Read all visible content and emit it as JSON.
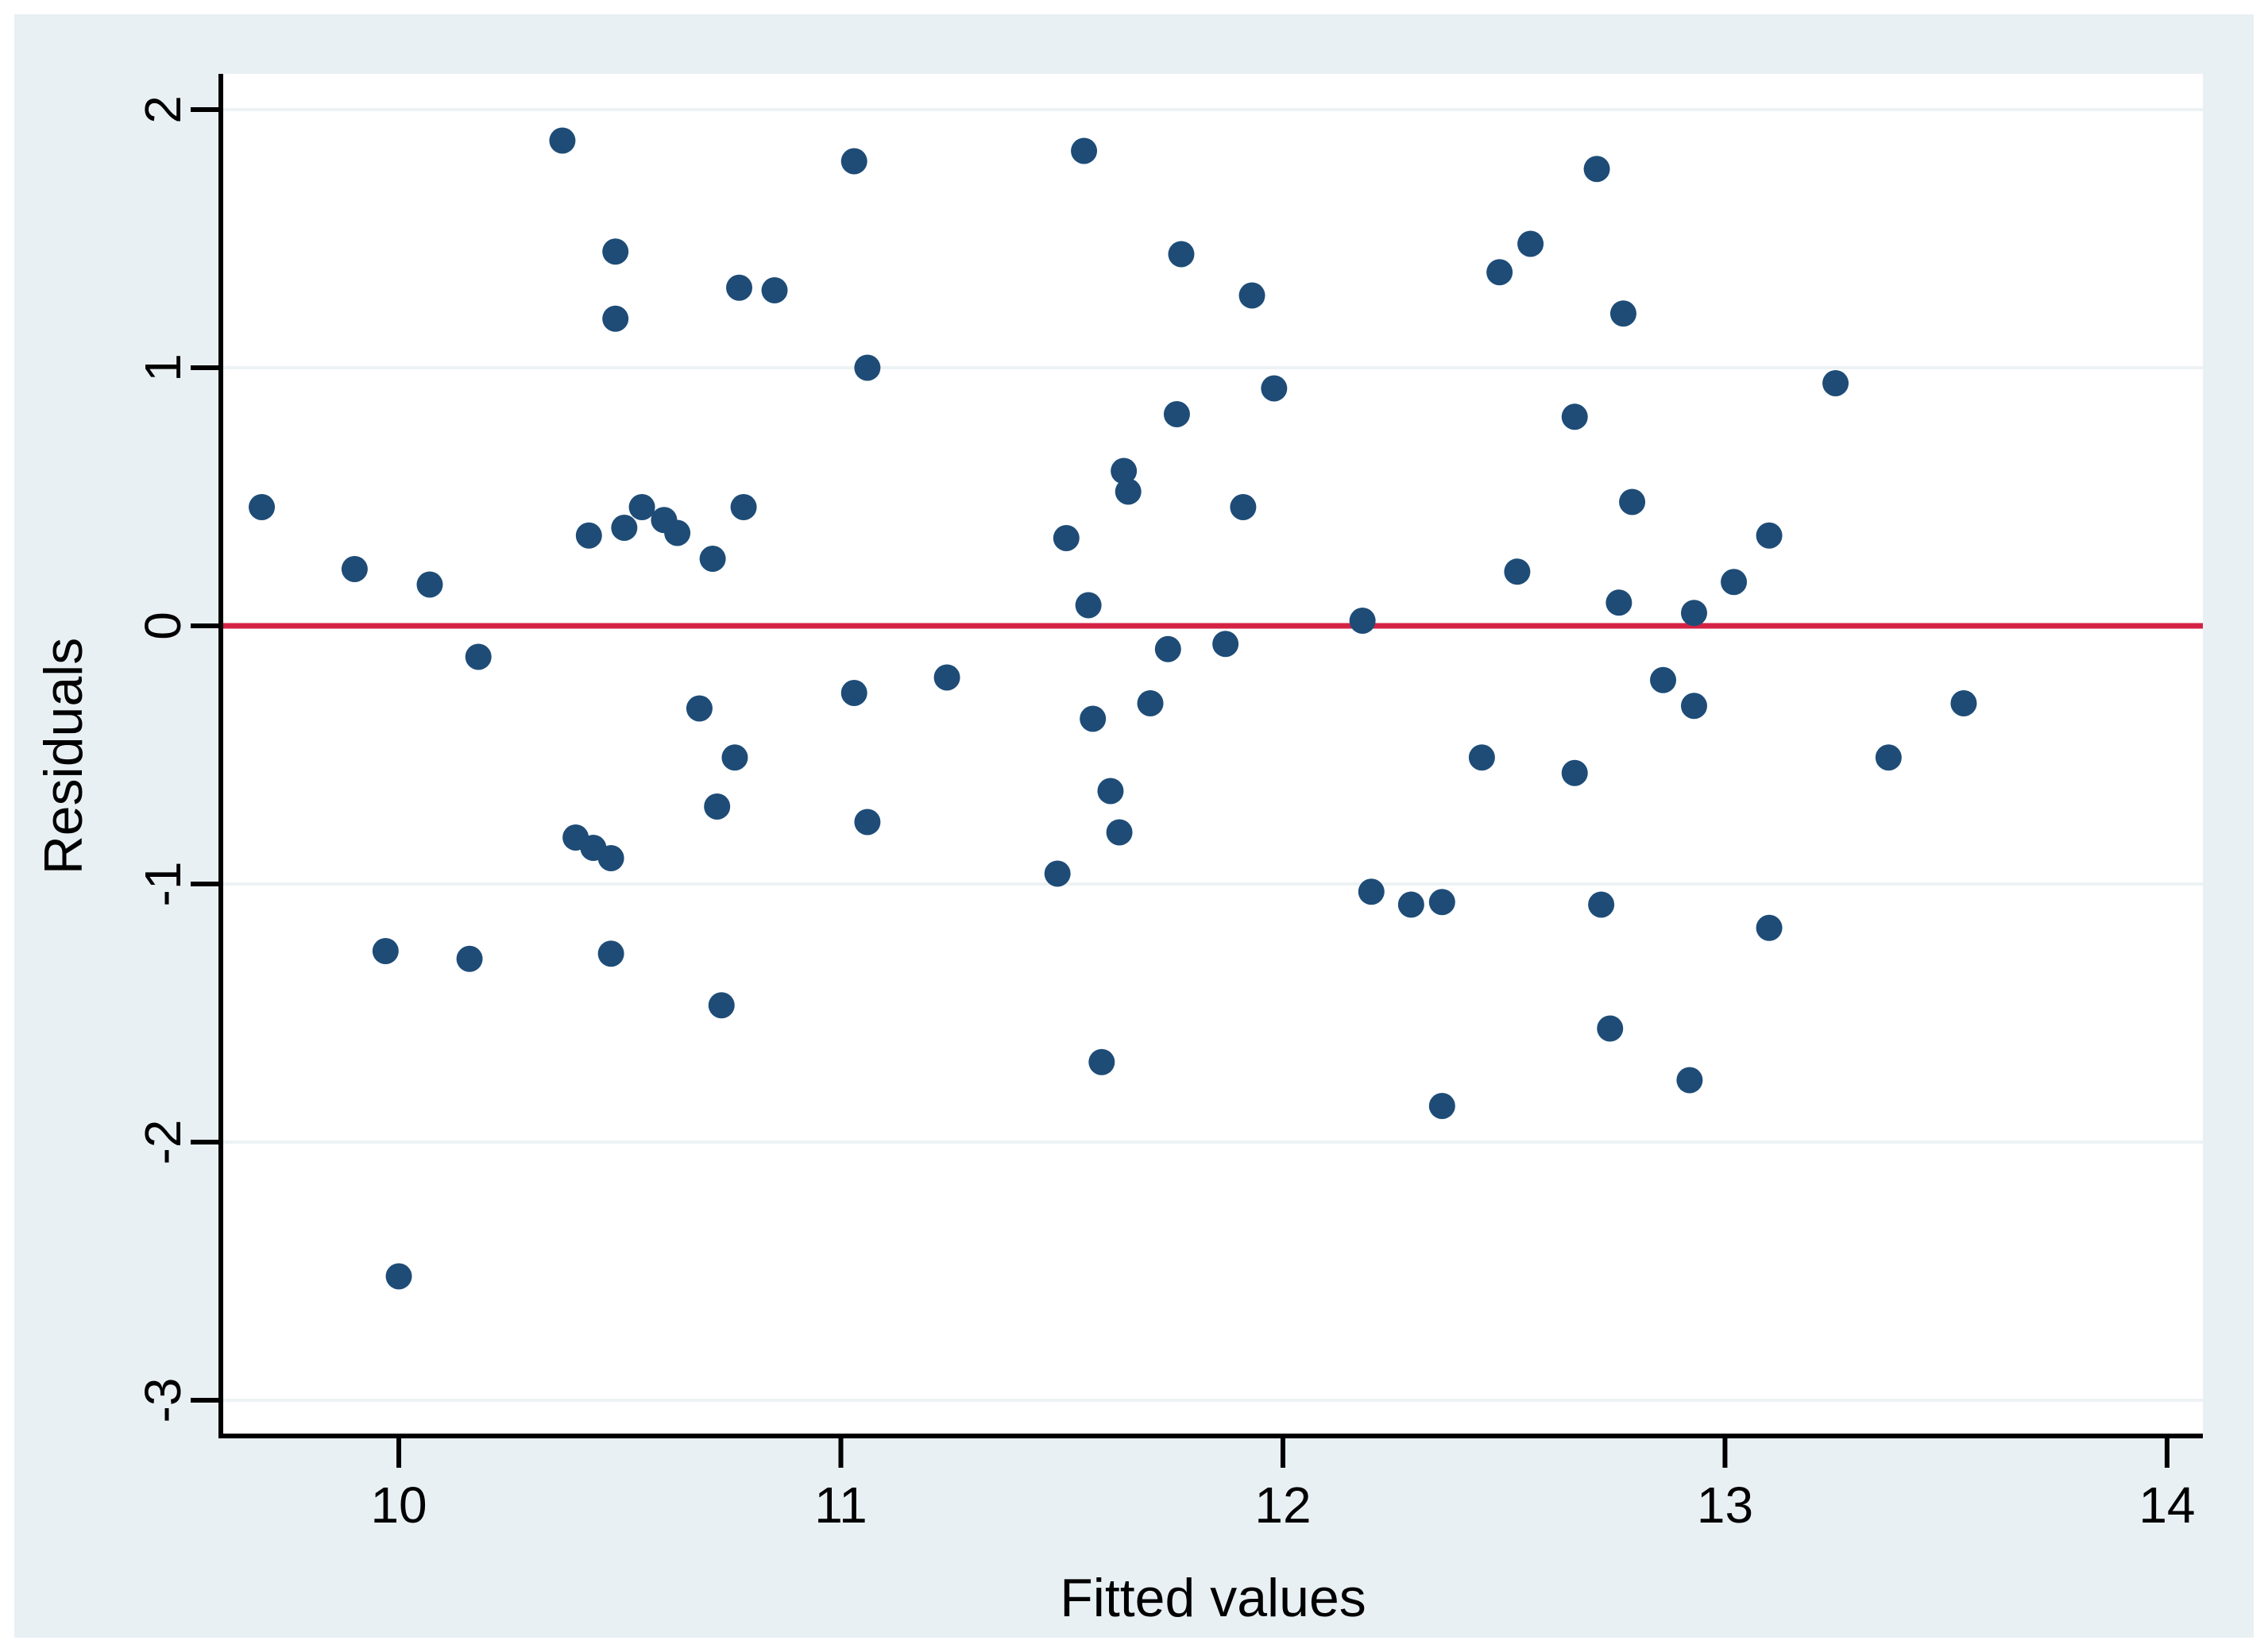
{
  "figure": {
    "background_color": "#e9f0f3",
    "plot_background_color": "#ffffff",
    "gridline_color": "#edf2f4",
    "axis_color": "#000000",
    "text_color": "#000000"
  },
  "chart_data": {
    "type": "scatter",
    "title": "",
    "xlabel": "Fitted values",
    "ylabel": "Residuals",
    "x_ticks": [
      10,
      11,
      12,
      13,
      14
    ],
    "y_ticks": [
      2,
      1,
      0,
      -1,
      -2,
      -3
    ],
    "xlim": [
      9.601,
      14.081
    ],
    "ylim": [
      -3.1385,
      2.1385
    ],
    "grid": "horizontal",
    "legend": "none",
    "refline_y": 0,
    "refline_color": "#d42245",
    "point_color": "#1e4c77",
    "point_radius_px": 16.5,
    "points": [
      [
        9.69,
        0.46
      ],
      [
        9.9,
        0.22
      ],
      [
        10.07,
        0.16
      ],
      [
        10.18,
        -0.12
      ],
      [
        9.97,
        -1.26
      ],
      [
        10.16,
        -1.29
      ],
      [
        10.48,
        -1.27
      ],
      [
        10.0,
        -2.52
      ],
      [
        10.37,
        1.88
      ],
      [
        10.49,
        1.45
      ],
      [
        10.49,
        1.19
      ],
      [
        10.77,
        1.31
      ],
      [
        10.85,
        1.3
      ],
      [
        10.43,
        0.35
      ],
      [
        10.51,
        0.38
      ],
      [
        10.55,
        0.46
      ],
      [
        10.6,
        0.41
      ],
      [
        10.63,
        0.36
      ],
      [
        10.71,
        0.26
      ],
      [
        10.78,
        0.46
      ],
      [
        10.68,
        -0.32
      ],
      [
        10.76,
        -0.51
      ],
      [
        10.72,
        -0.7
      ],
      [
        10.4,
        -0.82
      ],
      [
        10.44,
        -0.86
      ],
      [
        10.48,
        -0.9
      ],
      [
        10.73,
        -1.47
      ],
      [
        11.03,
        1.8
      ],
      [
        11.06,
        1.0
      ],
      [
        11.03,
        -0.26
      ],
      [
        11.06,
        -0.76
      ],
      [
        11.24,
        -0.2
      ],
      [
        11.51,
        0.34
      ],
      [
        11.55,
        1.84
      ],
      [
        11.56,
        0.08
      ],
      [
        11.57,
        -0.36
      ],
      [
        11.49,
        -0.96
      ],
      [
        11.59,
        -1.69
      ],
      [
        11.61,
        -0.64
      ],
      [
        11.63,
        -0.8
      ],
      [
        11.64,
        0.6
      ],
      [
        11.65,
        0.52
      ],
      [
        11.7,
        -0.3
      ],
      [
        11.74,
        -0.09
      ],
      [
        11.77,
        1.44
      ],
      [
        11.76,
        0.82
      ],
      [
        11.87,
        -0.07
      ],
      [
        11.91,
        0.46
      ],
      [
        11.93,
        1.28
      ],
      [
        11.98,
        0.92
      ],
      [
        12.18,
        0.02
      ],
      [
        12.2,
        -1.03
      ],
      [
        12.29,
        -1.08
      ],
      [
        12.36,
        -1.07
      ],
      [
        12.36,
        -1.86
      ],
      [
        12.45,
        -0.51
      ],
      [
        12.49,
        1.37
      ],
      [
        12.53,
        0.21
      ],
      [
        12.56,
        1.48
      ],
      [
        12.66,
        -0.57
      ],
      [
        12.66,
        0.81
      ],
      [
        12.71,
        1.77
      ],
      [
        12.72,
        -1.08
      ],
      [
        12.74,
        -1.56
      ],
      [
        12.76,
        0.09
      ],
      [
        12.77,
        1.21
      ],
      [
        12.79,
        0.48
      ],
      [
        12.86,
        -0.21
      ],
      [
        12.92,
        -1.76
      ],
      [
        12.93,
        0.05
      ],
      [
        12.93,
        -0.31
      ],
      [
        13.02,
        0.17
      ],
      [
        13.1,
        0.35
      ],
      [
        13.1,
        -1.17
      ],
      [
        13.25,
        0.94
      ],
      [
        13.37,
        -0.51
      ],
      [
        13.54,
        -0.3
      ]
    ]
  }
}
